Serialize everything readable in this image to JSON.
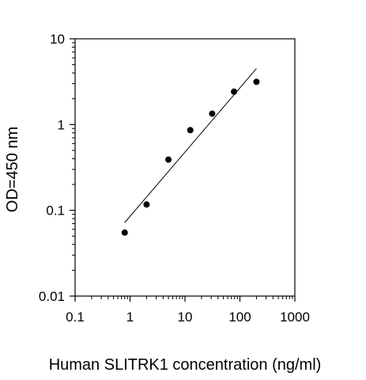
{
  "chart_data": {
    "type": "scatter",
    "title": "",
    "xlabel": "Human SLITRK1 concentration (ng/ml)",
    "ylabel": "OD=450 nm",
    "x_scale": "log",
    "y_scale": "log",
    "xlim": [
      0.1,
      1000
    ],
    "ylim": [
      0.01,
      10
    ],
    "x_ticks": [
      0.1,
      1,
      10,
      100,
      1000
    ],
    "x_tick_labels": [
      "0.1",
      "1",
      "10",
      "100",
      "1000"
    ],
    "y_ticks": [
      0.01,
      0.1,
      1,
      10
    ],
    "y_tick_labels": [
      "0.01",
      "0.1",
      "1",
      "10"
    ],
    "grid": false,
    "legend": "none",
    "series": [
      {
        "points": [
          {
            "x": 0.8,
            "y": 0.055
          },
          {
            "x": 2,
            "y": 0.117
          },
          {
            "x": 5,
            "y": 0.39
          },
          {
            "x": 12.5,
            "y": 0.86
          },
          {
            "x": 31.25,
            "y": 1.34
          },
          {
            "x": 78.13,
            "y": 2.42
          },
          {
            "x": 200,
            "y": 3.15
          }
        ],
        "color": "#000000"
      }
    ],
    "trendline": {
      "from": {
        "x": 0.8,
        "y": 0.072
      },
      "to": {
        "x": 200,
        "y": 4.5
      },
      "color": "#000000"
    }
  }
}
